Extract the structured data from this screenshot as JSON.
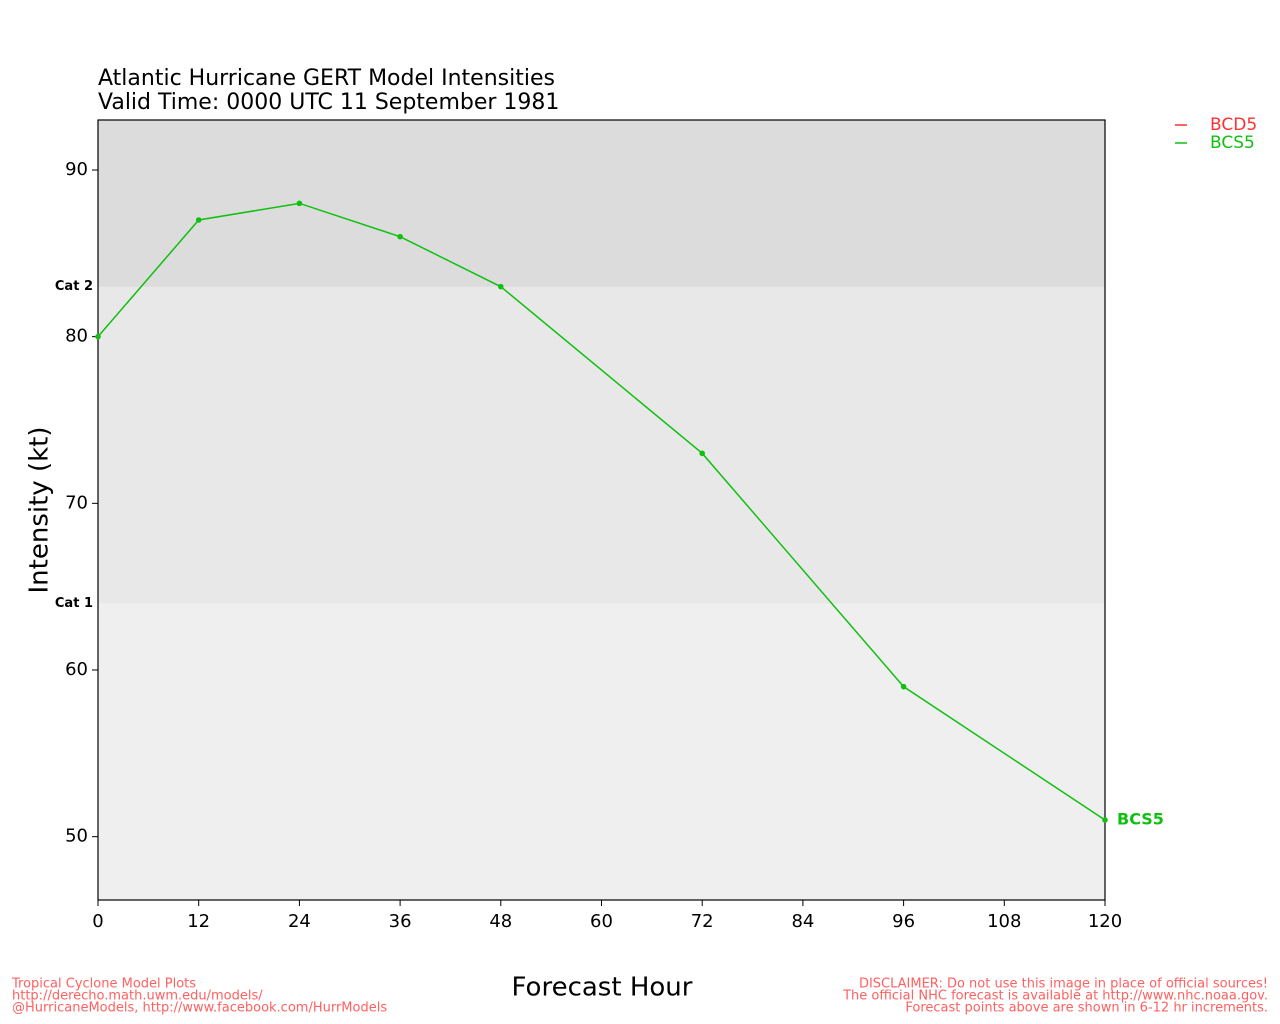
{
  "chart_data": {
    "type": "line",
    "title": "Atlantic Hurricane GERT Model Intensities",
    "subtitle": "Valid Time: 0000 UTC 11 September 1981",
    "x_label": "Forecast Hour",
    "y_label": "Intensity (kt)",
    "x": [
      0,
      12,
      24,
      36,
      48,
      72,
      96,
      120
    ],
    "series": [
      {
        "name": "BCD5",
        "color": "#ff3030",
        "values": [
          null,
          null,
          null,
          null,
          null,
          null,
          null,
          null
        ]
      },
      {
        "name": "BCS5",
        "color": "#10c010",
        "values": [
          80,
          87,
          88,
          86,
          83,
          73,
          59,
          51
        ]
      }
    ],
    "xlim": [
      0,
      120
    ],
    "xticks": [
      0,
      12,
      24,
      36,
      48,
      60,
      72,
      84,
      96,
      108,
      120
    ],
    "ylim": [
      46.2,
      93
    ],
    "yticks": [
      50,
      60,
      70,
      80,
      90
    ],
    "background": "#efefef",
    "bands": [
      {
        "value": 64,
        "label": "Cat 1",
        "color": "#e8e8e8"
      },
      {
        "value": 83,
        "label": "Cat 2",
        "color": "#dcdcdc"
      }
    ],
    "footer_left": [
      "Tropical Cyclone Model Plots",
      "http://derecho.math.uwm.edu/models/",
      "@HurricaneModels, http://www.facebook.com/HurrModels"
    ],
    "footer_right": [
      "DISCLAIMER: Do not use this image in place of official sources!",
      "The official NHC forecast is available at http://www.nhc.noaa.gov.",
      "Forecast points above are shown in 6-12 hr increments."
    ],
    "footer_color": "#ff6060"
  }
}
